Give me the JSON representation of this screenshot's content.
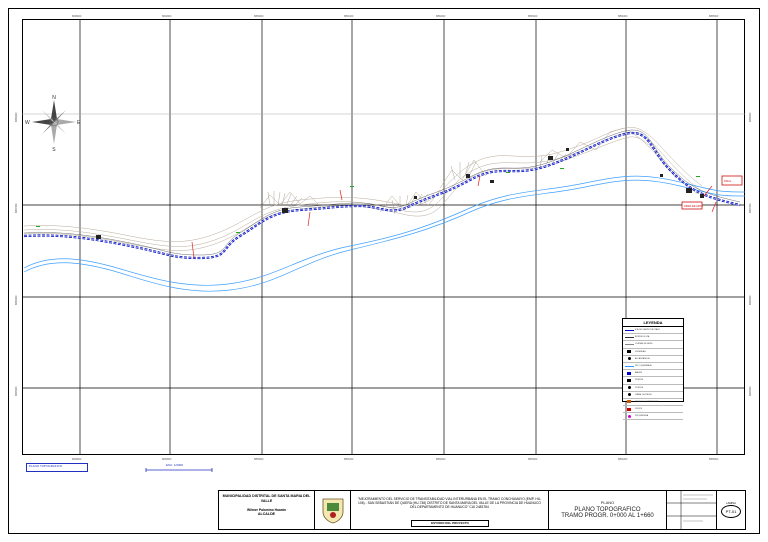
{
  "map": {
    "grid_x_labels": [
      "8848000",
      "8849000",
      "8850000",
      "8851000",
      "8852000",
      "8853000",
      "8854000",
      "8855000"
    ],
    "grid_y_labels": [
      "8998000",
      "8997000",
      "8996000",
      "8995000"
    ],
    "north_arrow": {
      "n": "N",
      "s": "S",
      "e": "E",
      "w": "W"
    },
    "tags": [
      "OBRA DE ARTE",
      "INICIO",
      "FINAL"
    ]
  },
  "legend": {
    "title": "LEYENDA",
    "items": [
      {
        "label": "EJE DE VIA PROYECTADO",
        "color": "#0000cc",
        "symbol": "line"
      },
      {
        "label": "BORDE DE VIA",
        "color": "#333333",
        "symbol": "line"
      },
      {
        "label": "CURVAS DE NIVEL",
        "color": "#888888",
        "symbol": "line"
      },
      {
        "label": "VIVIENDAS",
        "color": "#000000",
        "symbol": "square"
      },
      {
        "label": "ALCANTARILLA",
        "color": "#000000",
        "symbol": "dot"
      },
      {
        "label": "RIO / QUEBRADA",
        "color": "#3399ff",
        "symbol": "line"
      },
      {
        "label": "BADEN",
        "color": "#0000cc",
        "symbol": "square"
      },
      {
        "label": "PUENTE",
        "color": "#000000",
        "symbol": "square"
      },
      {
        "label": "POSTES",
        "color": "#000000",
        "symbol": "dot"
      },
      {
        "label": "CANAL DE RIEGO",
        "color": "#000000",
        "symbol": "dot"
      },
      {
        "label": "MURO DE CONTENCION",
        "color": "#cc5500",
        "symbol": "square"
      },
      {
        "label": "CRUCE",
        "color": "#cc0000",
        "symbol": "square"
      },
      {
        "label": "PROGRESIVA",
        "color": "#cc00cc",
        "symbol": "dot"
      }
    ]
  },
  "scale": {
    "label": "PLANO TOPOGRAFICO",
    "sub": "ESC: 1/2000"
  },
  "title_block": {
    "municipality": "MUNICIPALIDAD DISTRITAL DE SANTA MARIA DEL VALLE",
    "mayor": "Wilmer Palomino Huarán",
    "mayor_role": "ALCALDE",
    "project": "\"MEJORAMIENTO DEL SERVICIO DE TRANSITABILIDAD VIAL INTERURBANA EN EL TRAMO CONCHUMAYO (EMP. HU-106) - SAN SEBASTIAN DE QUERA (HU-738) DISTRITO DE SANTA MARIA DEL VALLE DE LA PROVINCIA DE HUANUCO DEL DEPARTAMENTO DE HUANUCO\" CUI 2483784",
    "stamp": "ESTUDIO DEL PROYECTO",
    "plano_label": "PLANO",
    "plano_title": "PLANO TOPOGRAFICO",
    "plano_tramo": "TRAMO PROGR. 0+000 AL 1+660",
    "sheet_code": "PT-01",
    "sheet_label": "LAMINA"
  }
}
